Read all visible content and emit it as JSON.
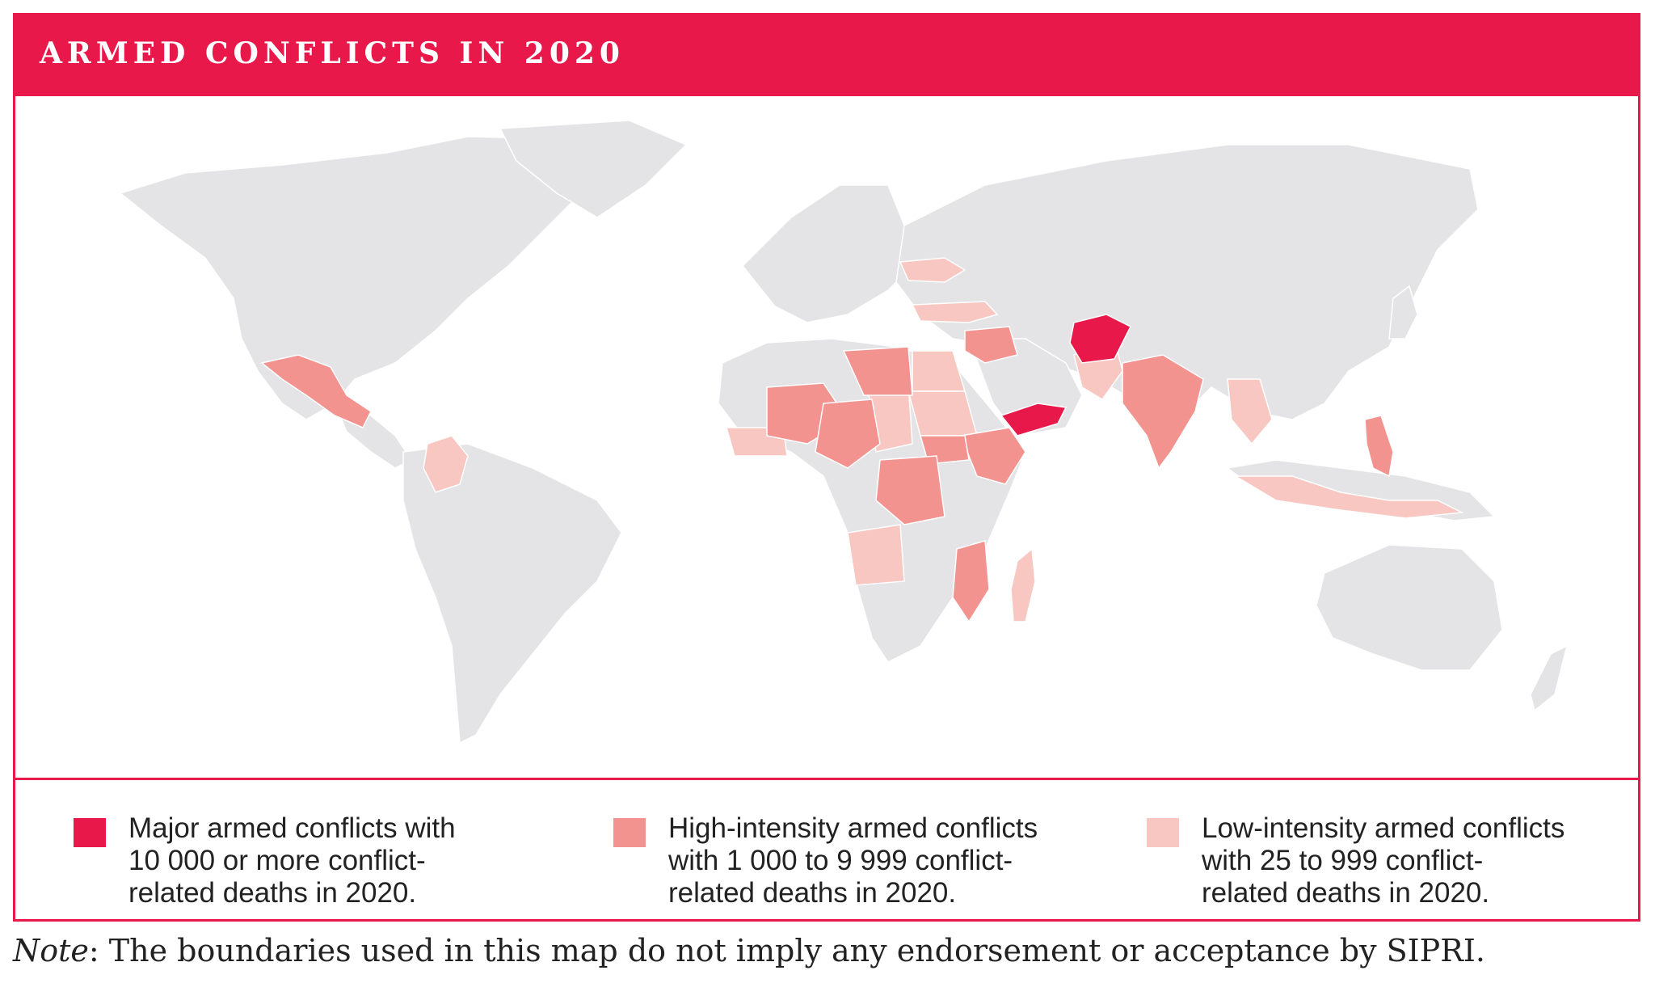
{
  "title": "ARMED CONFLICTS IN 2020",
  "colors": {
    "brand": "#e8194a",
    "major": "#e8194a",
    "high": "#f2938f",
    "low": "#f8c7c1",
    "land": "#e4e4e6"
  },
  "legend": [
    {
      "level": "major",
      "text": "Major armed conflicts with\n10 000 or more conflict-\nrelated deaths in 2020.",
      "color": "#e8194a"
    },
    {
      "level": "high",
      "text": "High-intensity armed conflicts\nwith 1 000 to 9 999 conflict-\nrelated deaths in 2020.",
      "color": "#f2938f"
    },
    {
      "level": "low",
      "text": "Low-intensity armed conflicts\nwith 25 to 999 conflict-\nrelated deaths in 2020.",
      "color": "#f8c7c1"
    }
  ],
  "note": {
    "label": "Note",
    "text": ": The boundaries used in this map do not imply any endorsement or acceptance by SIPRI."
  }
}
